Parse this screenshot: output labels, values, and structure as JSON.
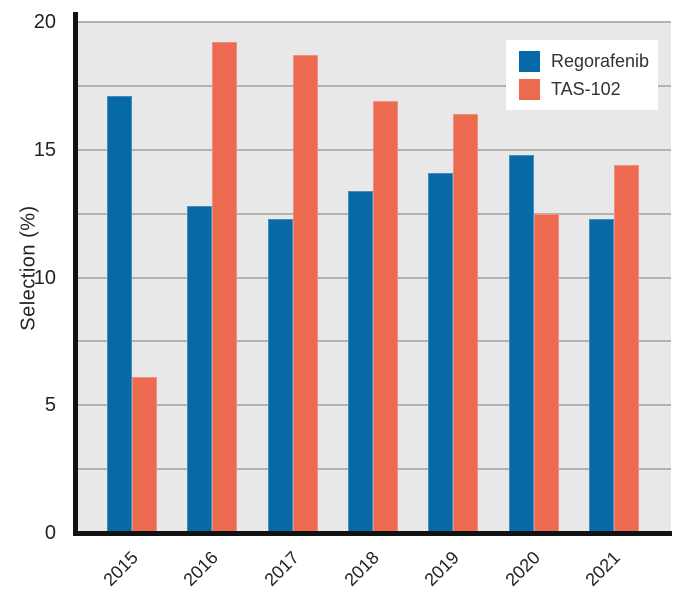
{
  "chart_data": {
    "type": "bar",
    "title": "",
    "xlabel": "",
    "ylabel": "Selection (%)",
    "categories": [
      "2015",
      "2016",
      "2017",
      "2018",
      "2019",
      "2020",
      "2021"
    ],
    "series": [
      {
        "name": "Regorafenib",
        "color": "#0769A5",
        "values": [
          17.1,
          12.8,
          12.3,
          13.4,
          14.1,
          14.8,
          12.3
        ]
      },
      {
        "name": "TAS-102",
        "color": "#EC6A50",
        "values": [
          6.1,
          19.2,
          18.7,
          16.9,
          16.4,
          12.5,
          14.4
        ]
      }
    ],
    "ylim": [
      0,
      20
    ],
    "ytick_values": [
      0,
      5,
      10,
      15,
      20
    ],
    "gridline_step": 2.5,
    "grid": true,
    "legend_position": "top-right",
    "colors": {
      "plot_background": "#E8E8E8",
      "gridline": "#B2B2B2",
      "axis": "#121212",
      "tick_text": "#232323",
      "legend_background": "#FFFFFF"
    }
  }
}
